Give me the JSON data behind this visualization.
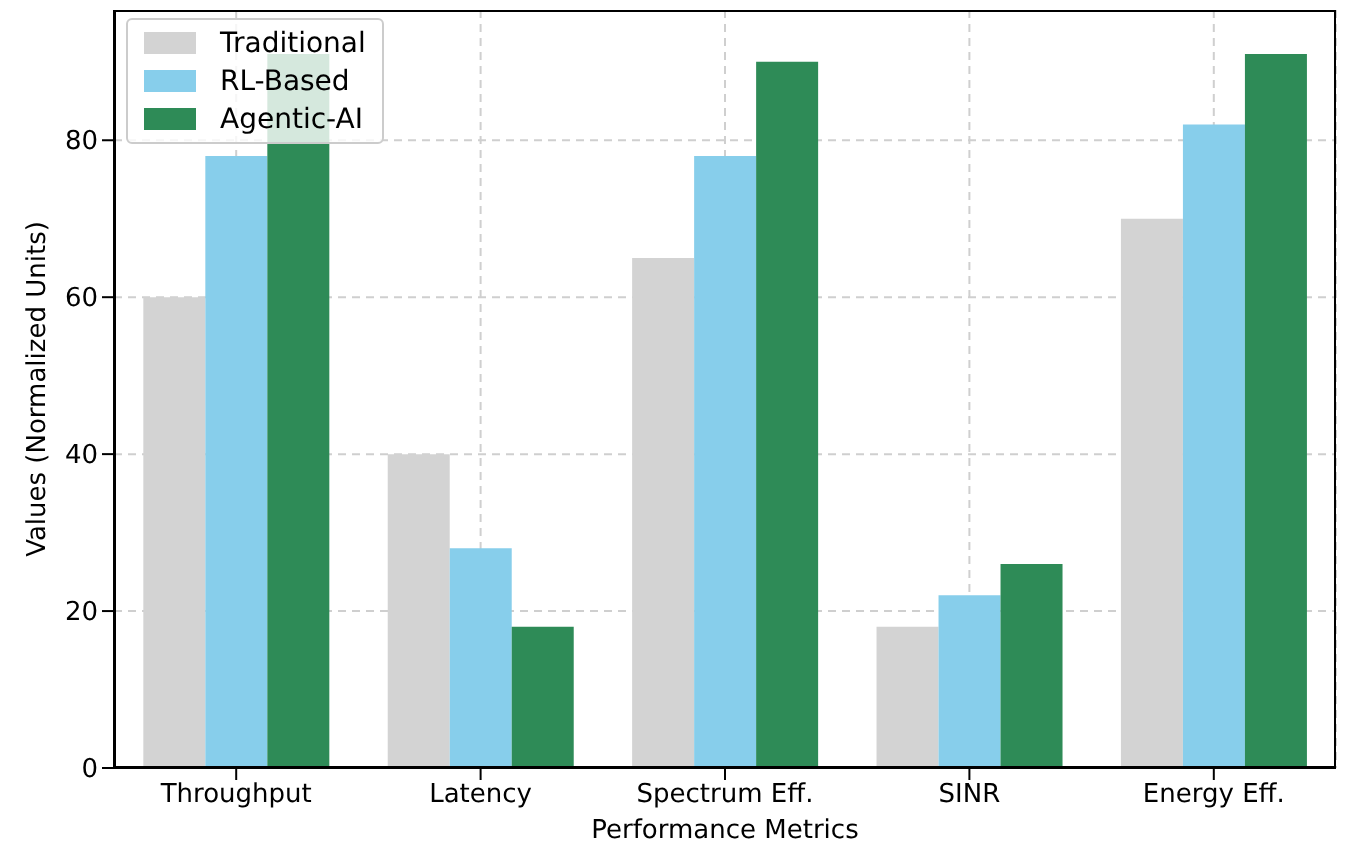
{
  "chart_data": {
    "type": "bar",
    "xlabel": "Performance Metrics",
    "ylabel": "Values (Normalized Units)",
    "categories": [
      "Throughput",
      "Latency",
      "Spectrum Eff.",
      "SINR",
      "Energy Eff."
    ],
    "series": [
      {
        "name": "Traditional",
        "color": "#d3d3d3",
        "values": [
          60,
          40,
          65,
          18,
          70
        ]
      },
      {
        "name": "RL-Based",
        "color": "#87ceeb",
        "values": [
          78,
          28,
          78,
          22,
          82
        ]
      },
      {
        "name": "Agentic-AI",
        "color": "#2e8b57",
        "values": [
          91,
          18,
          90,
          26,
          91
        ]
      }
    ],
    "ylim": [
      0,
      96.6
    ],
    "yticks": [
      0,
      20,
      40,
      60,
      80
    ],
    "grid": true,
    "legend": "top left"
  }
}
